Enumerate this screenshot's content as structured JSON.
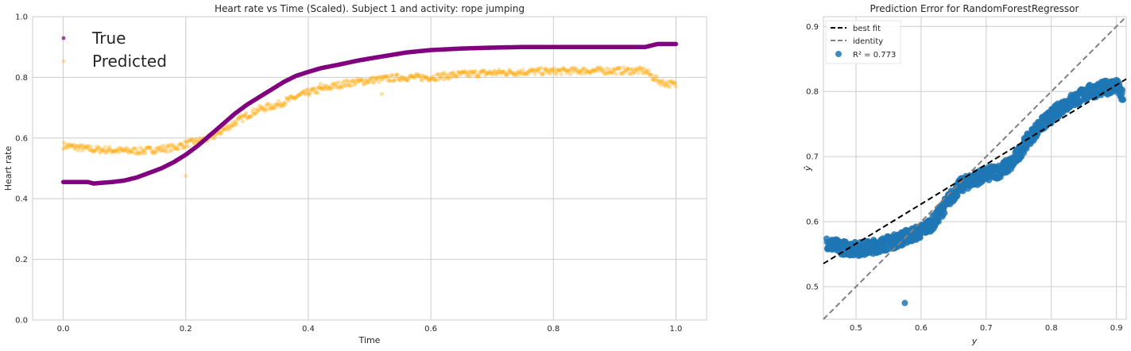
{
  "chart_data": [
    {
      "type": "scatter",
      "title": "Heart rate vs Time (Scaled). Subject 1 and activity: rope jumping",
      "xlabel": "Time",
      "ylabel": "Heart rate",
      "xlim": [
        -0.05,
        1.05
      ],
      "ylim": [
        0.0,
        1.0
      ],
      "xticks": [
        "0.0",
        "0.2",
        "0.4",
        "0.6",
        "0.8",
        "1.0"
      ],
      "yticks": [
        "0.0",
        "0.2",
        "0.4",
        "0.6",
        "0.8",
        "1.0"
      ],
      "grid": true,
      "legend": "top-left",
      "series": [
        {
          "name": "True",
          "color": "#800080",
          "x": [
            0.0,
            0.02,
            0.04,
            0.05,
            0.06,
            0.08,
            0.1,
            0.12,
            0.14,
            0.16,
            0.18,
            0.2,
            0.22,
            0.24,
            0.26,
            0.28,
            0.3,
            0.32,
            0.34,
            0.36,
            0.38,
            0.4,
            0.42,
            0.45,
            0.48,
            0.5,
            0.53,
            0.56,
            0.6,
            0.65,
            0.7,
            0.75,
            0.8,
            0.85,
            0.9,
            0.95,
            0.97,
            1.0
          ],
          "y": [
            0.455,
            0.455,
            0.455,
            0.45,
            0.452,
            0.455,
            0.46,
            0.47,
            0.485,
            0.5,
            0.52,
            0.545,
            0.575,
            0.61,
            0.645,
            0.68,
            0.71,
            0.735,
            0.76,
            0.785,
            0.805,
            0.818,
            0.83,
            0.842,
            0.855,
            0.862,
            0.872,
            0.882,
            0.89,
            0.895,
            0.898,
            0.9,
            0.9,
            0.9,
            0.9,
            0.9,
            0.91,
            0.91
          ]
        },
        {
          "name": "Predicted",
          "color": "#FFA500",
          "x": [
            0.0,
            0.02,
            0.05,
            0.08,
            0.1,
            0.13,
            0.15,
            0.18,
            0.2,
            0.22,
            0.24,
            0.26,
            0.28,
            0.3,
            0.32,
            0.35,
            0.38,
            0.4,
            0.43,
            0.46,
            0.5,
            0.55,
            0.6,
            0.65,
            0.7,
            0.75,
            0.8,
            0.85,
            0.9,
            0.95,
            0.96,
            0.97,
            0.98,
            1.0
          ],
          "y": [
            0.575,
            0.57,
            0.562,
            0.56,
            0.558,
            0.558,
            0.562,
            0.568,
            0.58,
            0.59,
            0.6,
            0.625,
            0.65,
            0.675,
            0.695,
            0.71,
            0.735,
            0.75,
            0.765,
            0.78,
            0.79,
            0.8,
            0.8,
            0.81,
            0.815,
            0.818,
            0.82,
            0.822,
            0.822,
            0.822,
            0.805,
            0.79,
            0.782,
            0.775
          ]
        }
      ]
    },
    {
      "type": "scatter",
      "title": "Prediction Error for RandomForestRegressor",
      "xlabel": "y",
      "ylabel": "ŷ",
      "xlim": [
        0.45,
        0.915
      ],
      "ylim": [
        0.45,
        0.915
      ],
      "xticks": [
        "0.5",
        "0.6",
        "0.7",
        "0.8",
        "0.9"
      ],
      "yticks": [
        "0.5",
        "0.6",
        "0.7",
        "0.8",
        "0.9"
      ],
      "grid": true,
      "legend": "top-left",
      "legend_labels": [
        "best fit",
        "identity",
        "R² = 0.773"
      ],
      "r2": "0.773",
      "best_fit": {
        "slope": 0.61,
        "intercept": 0.261,
        "color": "#000000"
      },
      "identity": {
        "color": "#808080"
      },
      "points": {
        "color": "#1F77B4",
        "x": [
          0.455,
          0.46,
          0.47,
          0.48,
          0.5,
          0.52,
          0.54,
          0.56,
          0.58,
          0.6,
          0.62,
          0.64,
          0.66,
          0.68,
          0.7,
          0.72,
          0.74,
          0.76,
          0.78,
          0.8,
          0.82,
          0.84,
          0.86,
          0.88,
          0.9,
          0.91,
          0.575
        ],
        "y": [
          0.57,
          0.565,
          0.562,
          0.56,
          0.558,
          0.56,
          0.565,
          0.57,
          0.578,
          0.585,
          0.6,
          0.63,
          0.655,
          0.665,
          0.672,
          0.678,
          0.69,
          0.72,
          0.745,
          0.762,
          0.78,
          0.79,
          0.8,
          0.805,
          0.81,
          0.79,
          0.475
        ]
      }
    }
  ]
}
